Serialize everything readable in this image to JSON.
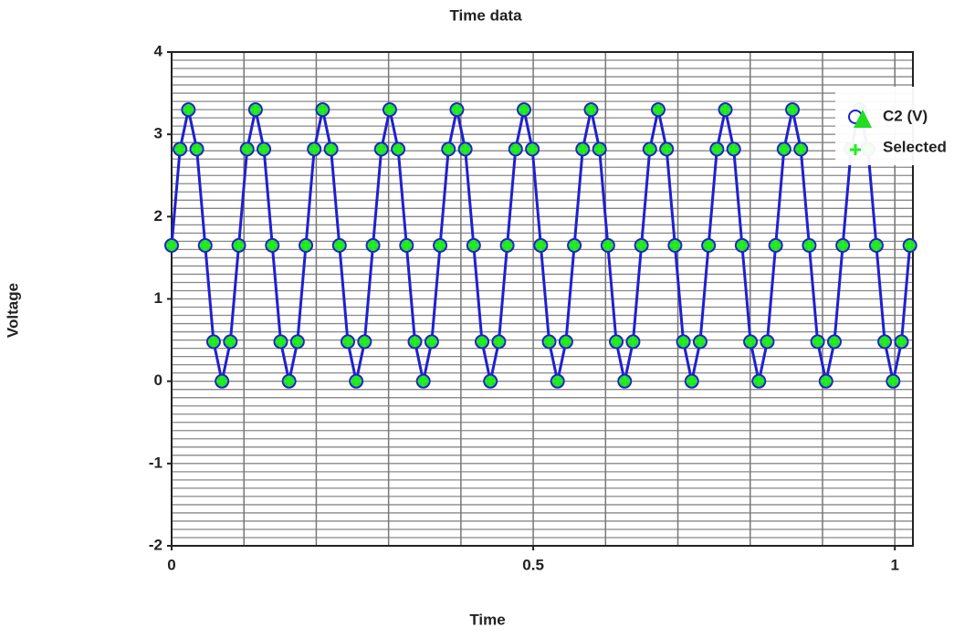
{
  "chart_data": {
    "type": "scatter",
    "title": "Time data",
    "x_label": "Time",
    "y_label": "Voltage",
    "x": [
      0,
      0.0116,
      0.0232,
      0.0348,
      0.0464,
      0.058,
      0.0696,
      0.0812,
      0.0928,
      0.1044,
      0.116,
      0.1276,
      0.1392,
      0.1508,
      0.1624,
      0.174,
      0.1856,
      0.1972,
      0.2088,
      0.2204,
      0.232,
      0.2436,
      0.2552,
      0.2668,
      0.2784,
      0.29,
      0.3016,
      0.3132,
      0.3248,
      0.3364,
      0.348,
      0.3596,
      0.3712,
      0.3828,
      0.3944,
      0.406,
      0.4176,
      0.4292,
      0.4408,
      0.4524,
      0.464,
      0.4756,
      0.4872,
      0.4988,
      0.5104,
      0.522,
      0.5336,
      0.5452,
      0.5568,
      0.5684,
      0.58,
      0.5916,
      0.6032,
      0.6148,
      0.6264,
      0.638,
      0.6496,
      0.6612,
      0.6728,
      0.6844,
      0.696,
      0.7076,
      0.7192,
      0.7308,
      0.7424,
      0.754,
      0.7656,
      0.7772,
      0.7888,
      0.8004,
      0.812,
      0.8236,
      0.8352,
      0.8468,
      0.8584,
      0.87,
      0.8816,
      0.8932,
      0.9048,
      0.9164,
      0.928,
      0.9396,
      0.9512,
      0.9628,
      0.9744,
      0.986,
      0.9976,
      1.0092,
      1.0208
    ],
    "series": [
      {
        "name": "C2 (V)",
        "color": "#2020d0",
        "marker_fill": "#22dd22",
        "values": [
          1.65,
          2.82,
          3.3,
          2.82,
          1.65,
          0.48,
          0,
          0.48,
          1.65,
          2.82,
          3.3,
          2.82,
          1.65,
          0.48,
          0,
          0.48,
          1.65,
          2.82,
          3.3,
          2.82,
          1.65,
          0.48,
          0,
          0.48,
          1.65,
          2.82,
          3.3,
          2.82,
          1.65,
          0.48,
          0,
          0.48,
          1.65,
          2.82,
          3.3,
          2.82,
          1.65,
          0.48,
          0,
          0.48,
          1.65,
          2.82,
          3.3,
          2.82,
          1.65,
          0.48,
          0,
          0.48,
          1.65,
          2.82,
          3.3,
          2.82,
          1.65,
          0.48,
          0,
          0.48,
          1.65,
          2.82,
          3.3,
          2.82,
          1.65,
          0.48,
          0,
          0.48,
          1.65,
          2.82,
          3.3,
          2.82,
          1.65,
          0.48,
          0,
          0.48,
          1.65,
          2.82,
          3.3,
          2.82,
          1.65,
          0.48,
          0,
          0.48,
          1.65,
          2.82,
          3.3,
          2.82,
          1.65,
          0.48,
          0,
          0.48,
          1.65
        ]
      },
      {
        "name": "Selected",
        "color": "#22ee22",
        "values": [
          1.65,
          2.82,
          3.3,
          2.82,
          1.65,
          0.48,
          0,
          0.48,
          1.65,
          2.82,
          3.3,
          2.82,
          1.65,
          0.48,
          0,
          0.48,
          1.65,
          2.82,
          3.3,
          2.82,
          1.65,
          0.48,
          0,
          0.48,
          1.65,
          2.82,
          3.3,
          2.82,
          1.65,
          0.48,
          0,
          0.48,
          1.65,
          2.82,
          3.3,
          2.82,
          1.65,
          0.48,
          0,
          0.48,
          1.65,
          2.82,
          3.3,
          2.82,
          1.65,
          0.48,
          0,
          0.48,
          1.65,
          2.82,
          3.3,
          2.82,
          1.65,
          0.48,
          0,
          0.48,
          1.65,
          2.82,
          3.3,
          2.82,
          1.65,
          0.48,
          0,
          0.48,
          1.65,
          2.82,
          3.3,
          2.82,
          1.65,
          0.48,
          0,
          0.48,
          1.65,
          2.82,
          3.3,
          2.82,
          1.65,
          0.48,
          0,
          0.48,
          1.65,
          2.82,
          3.3,
          2.82,
          1.65,
          0.48,
          0,
          0.48,
          1.65
        ]
      }
    ],
    "xlim": [
      0,
      1.025
    ],
    "ylim": [
      -2,
      4
    ],
    "xticks": [
      0,
      0.5,
      1
    ],
    "yticks": [
      -2,
      -1,
      0,
      1,
      2,
      3,
      4
    ],
    "xgrid": [
      0.1,
      0.2,
      0.3,
      0.4,
      0.5,
      0.6,
      0.7,
      0.8,
      0.9,
      1
    ],
    "ygrid": [
      -1.9,
      -1.8,
      -1.7,
      -1.6,
      -1.5,
      -1.4,
      -1.3,
      -1.2,
      -1.1,
      -1,
      -0.9,
      -0.8,
      -0.7,
      -0.6,
      -0.5,
      -0.4,
      -0.3,
      -0.2,
      -0.1,
      0,
      0.1,
      0.2,
      0.3,
      0.4,
      0.5,
      0.6,
      0.7,
      0.8,
      0.9,
      1,
      1.1,
      1.2,
      1.3,
      1.4,
      1.5,
      1.6,
      1.7,
      1.8,
      1.9,
      2,
      2.1,
      2.2,
      2.3,
      2.4,
      2.5,
      2.6,
      2.7,
      2.8,
      2.9,
      3,
      3.1,
      3.2,
      3.3,
      3.4,
      3.5,
      3.6,
      3.7,
      3.8,
      3.9
    ],
    "grid": true,
    "legend": "upper right"
  }
}
